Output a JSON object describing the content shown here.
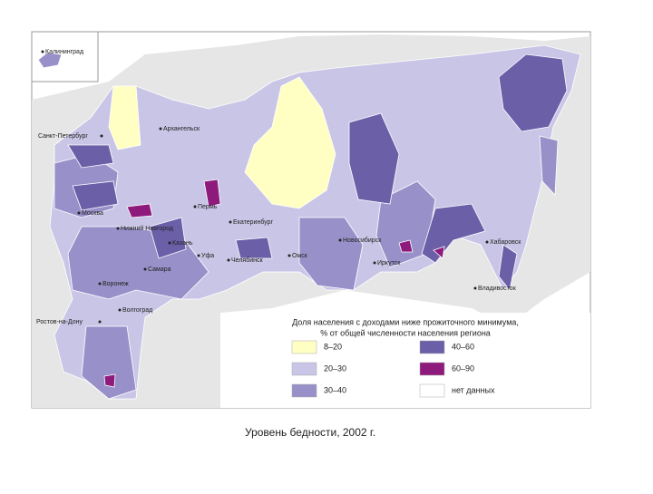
{
  "map": {
    "cities": [
      "Калининград",
      "Санкт-Петербург",
      "Архангельск",
      "Москва",
      "Нижний Новгород",
      "Пермь",
      "Екатеринбург",
      "Казань",
      "Уфа",
      "Самара",
      "Челябинск",
      "Омск",
      "Новосибирск",
      "Иркутск",
      "Хабаровск",
      "Владивосток",
      "Воронеж",
      "Волгоград",
      "Ростов-на-Дону"
    ],
    "legend": {
      "title": [
        "Доля населения с доходами ниже прожиточного минимума,",
        "% от общей численности населения региона"
      ],
      "items": [
        {
          "label": "8–20",
          "color": "#ffffc4"
        },
        {
          "label": "20–30",
          "color": "#c9c5e6"
        },
        {
          "label": "30–40",
          "color": "#9890c8"
        },
        {
          "label": "40–60",
          "color": "#6b5fa8"
        },
        {
          "label": "60–90",
          "color": "#8e1b7c"
        },
        {
          "label": "нет данных",
          "color": "#ffffff"
        }
      ]
    },
    "caption": "Уровень бедности, 2002 г."
  }
}
